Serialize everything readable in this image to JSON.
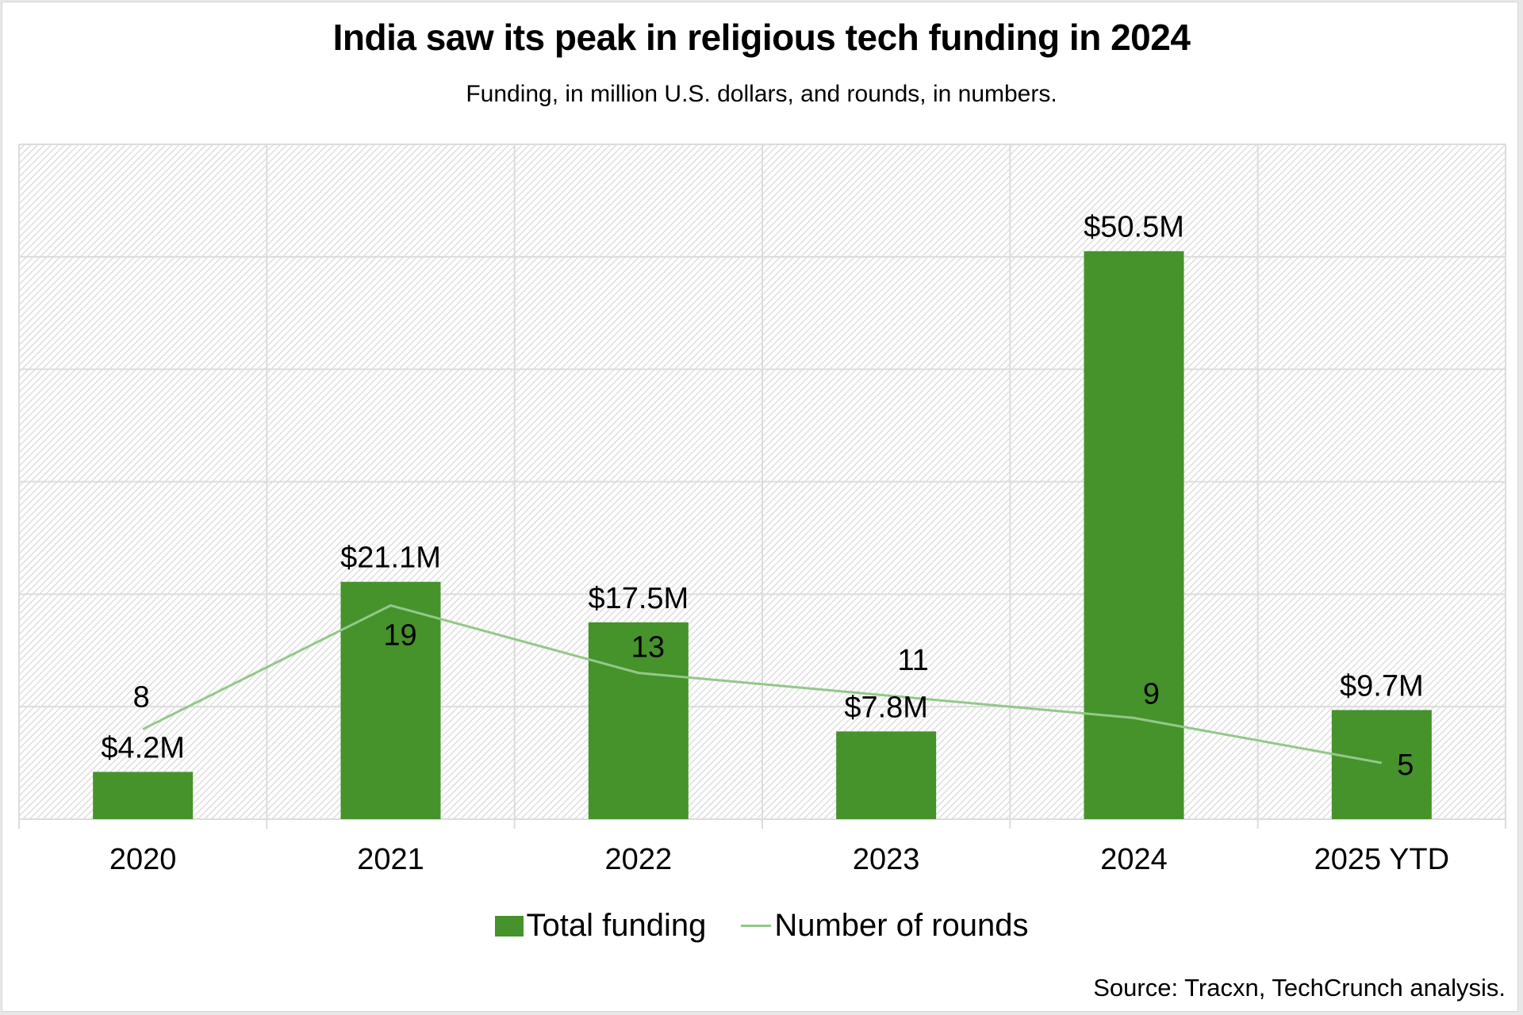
{
  "title": "India saw its peak in religious tech funding in 2024",
  "subtitle": "Funding, in million U.S. dollars, and rounds, in numbers.",
  "source": "Source: Tracxn, TechCrunch analysis.",
  "colors": {
    "bar": "#46922b",
    "line": "#93c88a",
    "grid": "#dcdcdc",
    "hatch": "#e4e4e4"
  },
  "legend": [
    {
      "label": "Total funding",
      "kind": "bar"
    },
    {
      "label": "Number of rounds",
      "kind": "line"
    }
  ],
  "chart_data": {
    "type": "bar",
    "title": "India saw its peak in religious tech funding in 2024",
    "subtitle": "Funding, in million U.S. dollars, and rounds, in numbers.",
    "xlabel": "",
    "ylabel": "",
    "categories": [
      "2020",
      "2021",
      "2022",
      "2023",
      "2024",
      "2025 YTD"
    ],
    "ylim": [
      0,
      60
    ],
    "grid": true,
    "legend_position": "bottom",
    "series": [
      {
        "name": "Total funding",
        "type": "bar",
        "values": [
          4.2,
          21.1,
          17.5,
          7.8,
          50.5,
          9.7
        ],
        "labels": [
          "$4.2M",
          "$21.1M",
          "$17.5M",
          "$7.8M",
          "$50.5M",
          "$9.7M"
        ]
      },
      {
        "name": "Number of rounds",
        "type": "line",
        "values": [
          8,
          19,
          13,
          11,
          9,
          5
        ],
        "labels": [
          "8",
          "19",
          "13",
          "11",
          "9",
          "5"
        ]
      }
    ]
  }
}
